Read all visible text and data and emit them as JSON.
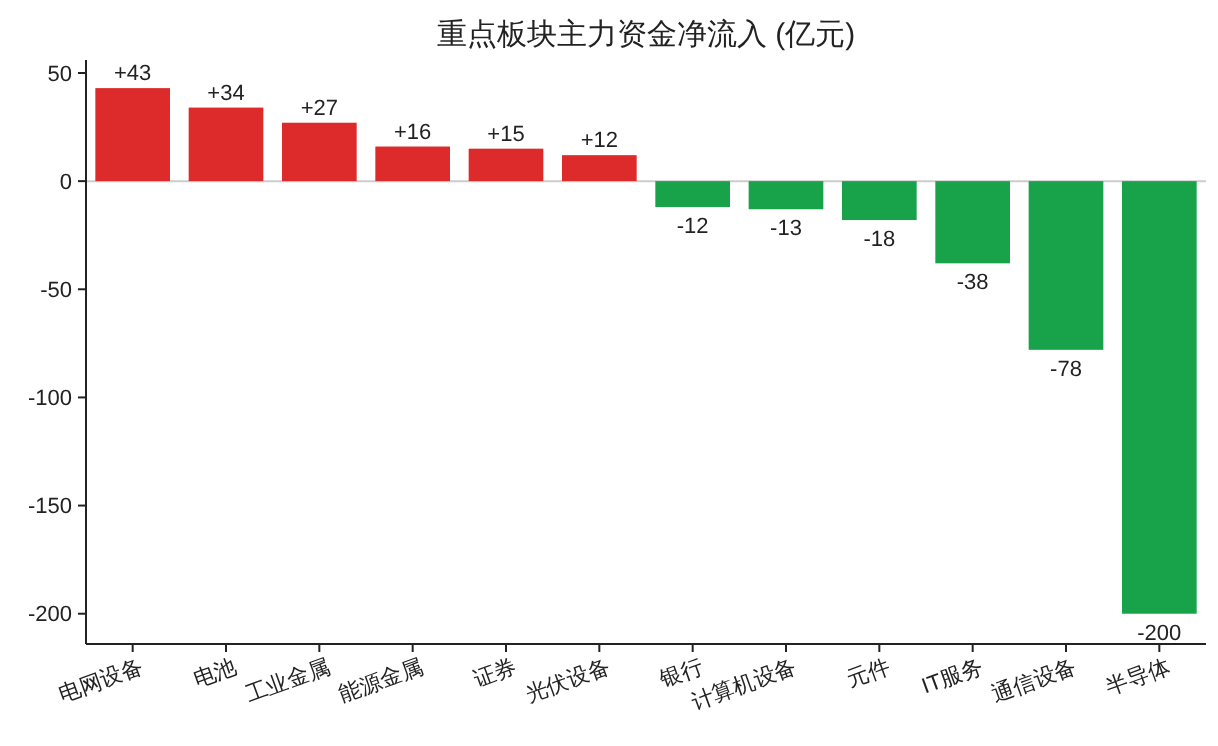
{
  "chart_data": {
    "type": "bar",
    "title": "重点板块主力资金净流入 (亿元)",
    "categories": [
      "电网设备",
      "电池",
      "工业金属",
      "能源金属",
      "证券",
      "光伏设备",
      "银行",
      "计算机设备",
      "元件",
      "IT服务",
      "通信设备",
      "半导体"
    ],
    "values": [
      43,
      34,
      27,
      16,
      15,
      12,
      -12,
      -13,
      -18,
      -38,
      -78,
      -200
    ],
    "colors": [
      "#dd2a2a",
      "#dd2a2a",
      "#dd2a2a",
      "#dd2a2a",
      "#dd2a2a",
      "#dd2a2a",
      "#18a34a",
      "#18a34a",
      "#18a34a",
      "#18a34a",
      "#18a34a",
      "#18a34a"
    ],
    "value_labels": [
      "+43",
      "+34",
      "+27",
      "+16",
      "+15",
      "+12",
      "-12",
      "-13",
      "-18",
      "-38",
      "-78",
      "-200"
    ],
    "ylim": [
      -214,
      56
    ],
    "yticks": [
      -200,
      -150,
      -100,
      -50,
      0,
      50
    ],
    "grid": false,
    "ref_lines": [
      {
        "axis": "y",
        "value": 0,
        "color": "#cccccc"
      }
    ]
  }
}
